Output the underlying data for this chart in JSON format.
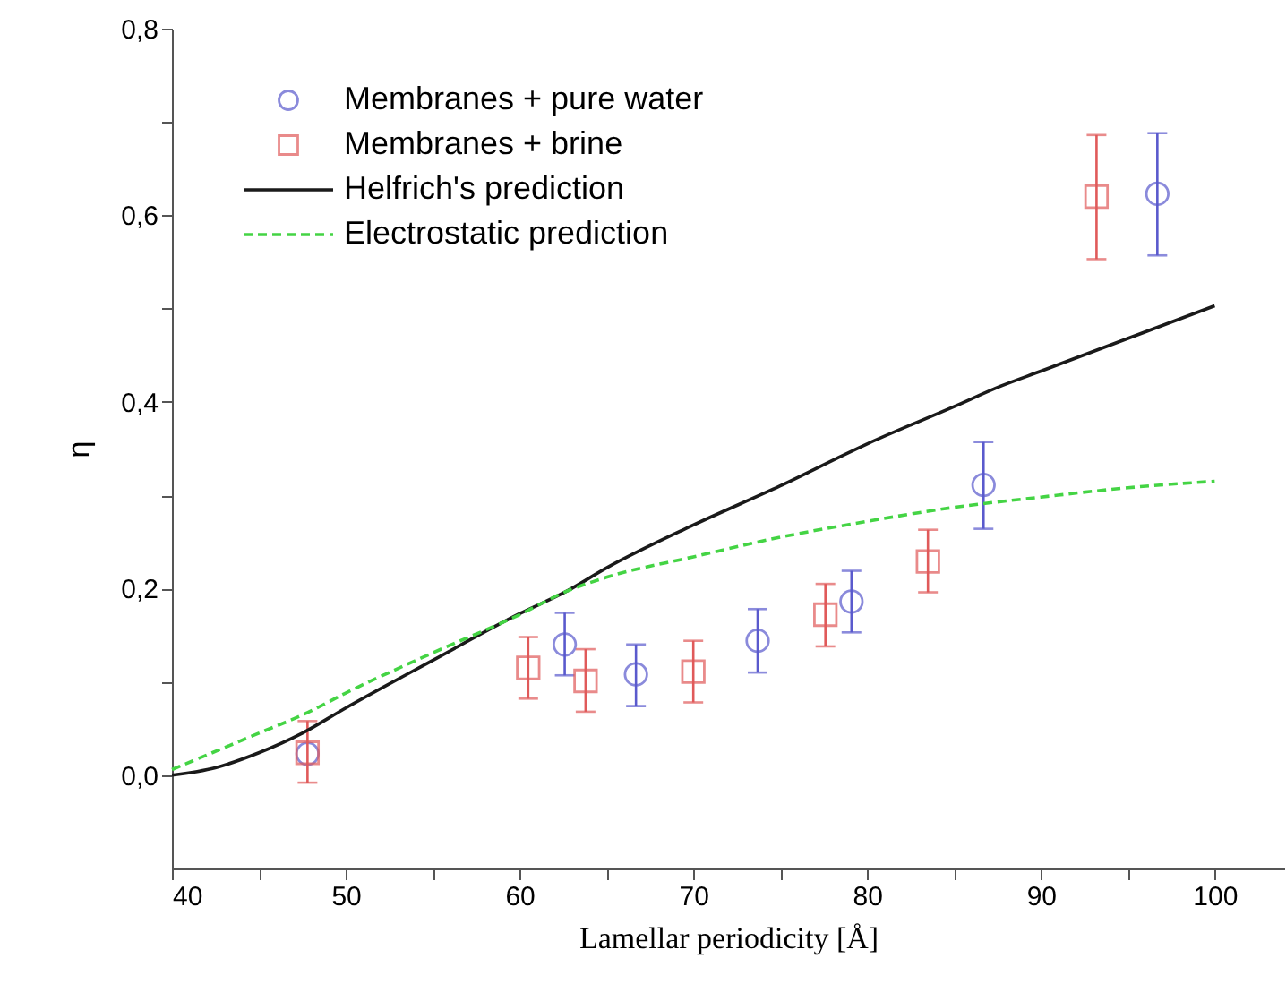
{
  "chart_data": {
    "type": "scatter",
    "xlabel": "Lamellar periodicity [Å]",
    "ylabel": "η",
    "xlim": [
      40,
      104
    ],
    "ylim": [
      -0.1,
      0.8
    ],
    "xticks": [
      40,
      {
        "value": 45,
        "label": null
      },
      50,
      {
        "value": 55,
        "label": null
      },
      60,
      {
        "value": 65,
        "label": null
      },
      70,
      {
        "value": 75,
        "label": null
      },
      80,
      {
        "value": 85,
        "label": null
      },
      90,
      {
        "value": 95,
        "label": null
      },
      100
    ],
    "yticks": [
      {
        "value": 0,
        "label": "0,0"
      },
      {
        "value": 0.1,
        "label": null
      },
      {
        "value": 0.2,
        "label": "0,2"
      },
      {
        "value": 0.3,
        "label": null
      },
      {
        "value": 0.4,
        "label": "0,4"
      },
      {
        "value": 0.5,
        "label": null
      },
      {
        "value": 0.6,
        "label": "0,6"
      },
      {
        "value": 0.7,
        "label": null
      },
      {
        "value": 0.8,
        "label": "0,8"
      }
    ],
    "grid": false,
    "legend": "top left",
    "series": [
      {
        "name": "Membranes + pure water",
        "marker": "circle",
        "color": "#5a5acd",
        "x": [
          47.8,
          62.6,
          66.7,
          73.7,
          79.1,
          86.7,
          96.7
        ],
        "values": [
          0.023,
          0.14,
          0.108,
          0.144,
          0.186,
          0.311,
          0.623
        ],
        "errors": [
          null,
          [
            0.107,
            0.174
          ],
          [
            0.074,
            0.14
          ],
          [
            0.11,
            0.178
          ],
          [
            0.153,
            0.219
          ],
          [
            0.264,
            0.357
          ],
          [
            0.557,
            0.688
          ]
        ]
      },
      {
        "name": "Membranes + brine",
        "marker": "square",
        "color": "#e05a5a",
        "x": [
          47.8,
          60.5,
          63.8,
          70.0,
          77.6,
          83.5,
          93.2
        ],
        "values": [
          0.024,
          0.115,
          0.101,
          0.111,
          0.172,
          0.229,
          0.62
        ],
        "errors": [
          [
            -0.008,
            0.058
          ],
          [
            0.082,
            0.148
          ],
          [
            0.068,
            0.135
          ],
          [
            0.078,
            0.144
          ],
          [
            0.138,
            0.205
          ],
          [
            0.196,
            0.263
          ],
          [
            0.553,
            0.686
          ]
        ]
      },
      {
        "name": "Helfrich's prediction",
        "type": "line",
        "line_style": "solid",
        "color": "#1a1a1a",
        "x": [
          40,
          42.5,
          45,
          47.5,
          50,
          55,
          60,
          62.7,
          65,
          70,
          75,
          80,
          85,
          87.7,
          90,
          95,
          100
        ],
        "values": [
          0,
          0.008,
          0.024,
          0.045,
          0.072,
          0.123,
          0.173,
          0.197,
          0.222,
          0.268,
          0.31,
          0.355,
          0.395,
          0.417,
          0.433,
          0.468,
          0.503
        ]
      },
      {
        "name": "Electrostatic prediction",
        "type": "line",
        "line_style": "dashed",
        "color": "#44d444",
        "x": [
          40,
          45,
          47.8,
          50,
          55,
          60,
          62.7,
          65,
          70,
          75,
          80,
          85,
          90,
          95,
          100
        ],
        "values": [
          0.006,
          0.045,
          0.067,
          0.088,
          0.131,
          0.172,
          0.197,
          0.212,
          0.234,
          0.255,
          0.272,
          0.287,
          0.298,
          0.308,
          0.315
        ]
      }
    ]
  }
}
